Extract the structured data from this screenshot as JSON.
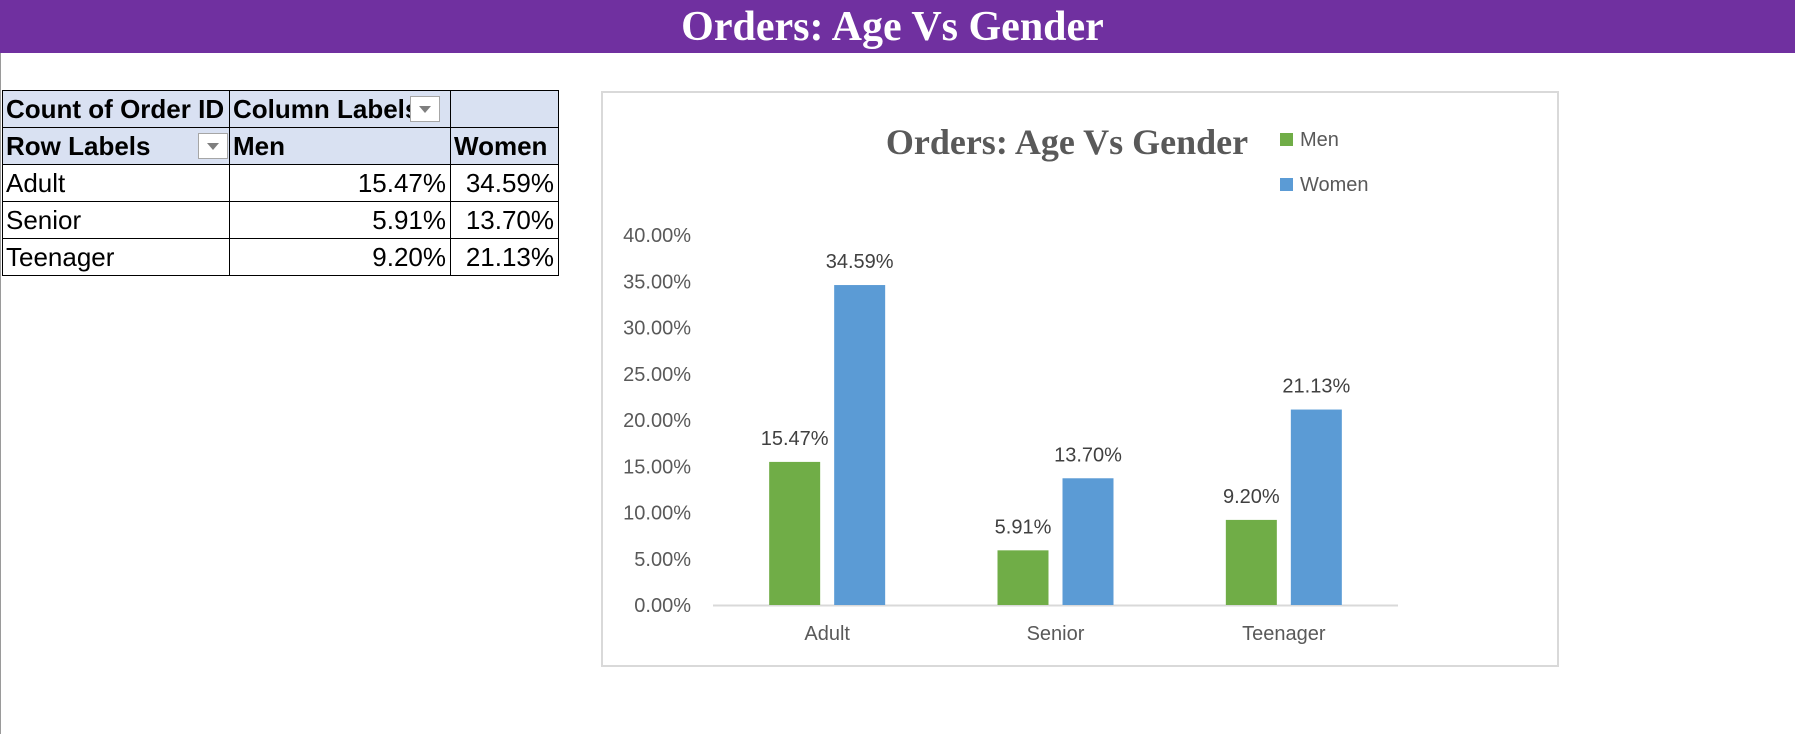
{
  "banner": {
    "title": "Orders: Age Vs Gender"
  },
  "pivot": {
    "header_row1": [
      "Count of Order ID",
      "Column Labels",
      ""
    ],
    "header_row2": [
      "Row Labels",
      "Men",
      "Women"
    ],
    "rows": [
      {
        "label": "Adult",
        "men": "15.47%",
        "women": "34.59%"
      },
      {
        "label": "Senior",
        "men": "5.91%",
        "women": "13.70%"
      },
      {
        "label": "Teenager",
        "men": "9.20%",
        "women": "21.13%"
      }
    ]
  },
  "chart_data": {
    "type": "bar",
    "title": "Orders: Age Vs Gender",
    "xlabel": "",
    "ylabel": "",
    "categories": [
      "Adult",
      "Senior",
      "Teenager"
    ],
    "series": [
      {
        "name": "Men",
        "color": "#70ad47",
        "values": [
          15.47,
          5.91,
          9.2
        ],
        "labels": [
          "15.47%",
          "5.91%",
          "9.20%"
        ]
      },
      {
        "name": "Women",
        "color": "#5b9bd5",
        "values": [
          34.59,
          13.7,
          21.13
        ],
        "labels": [
          "34.59%",
          "13.70%",
          "21.13%"
        ]
      }
    ],
    "ylim": [
      0,
      40
    ],
    "yticks": [
      "0.00%",
      "5.00%",
      "10.00%",
      "15.00%",
      "20.00%",
      "25.00%",
      "30.00%",
      "35.00%",
      "40.00%"
    ],
    "grid": false,
    "legend": "top-right"
  }
}
